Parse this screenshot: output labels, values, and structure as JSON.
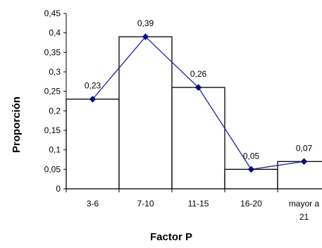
{
  "chart_data": {
    "type": "bar",
    "xlabel": "Factor P",
    "ylabel": "Proporción",
    "categories": [
      [
        "3-6"
      ],
      [
        "7-10"
      ],
      [
        "11-15"
      ],
      [
        "16-20"
      ],
      [
        "mayor a",
        "21"
      ]
    ],
    "values": [
      0.23,
      0.39,
      0.26,
      0.05,
      0.07
    ],
    "data_labels": [
      "0,23",
      "0,39",
      "0,26",
      "0,05",
      "0,07"
    ],
    "ylim": [
      0,
      0.45
    ],
    "yticks": [
      0,
      0.05,
      0.1,
      0.15,
      0.2,
      0.25,
      0.3,
      0.35,
      0.4,
      0.45
    ],
    "ytick_labels": [
      "0",
      "0,05",
      "0,1",
      "0,15",
      "0,2",
      "0,25",
      "0,3",
      "0,35",
      "0,4",
      "0,45"
    ],
    "grid": false,
    "legend": false,
    "overlay": "line with diamond markers connecting bar tops",
    "colors": {
      "bar_fill": "#ffffff",
      "bar_stroke": "#000000",
      "line": "#1f1fa0",
      "marker": "#0a0a78"
    }
  }
}
